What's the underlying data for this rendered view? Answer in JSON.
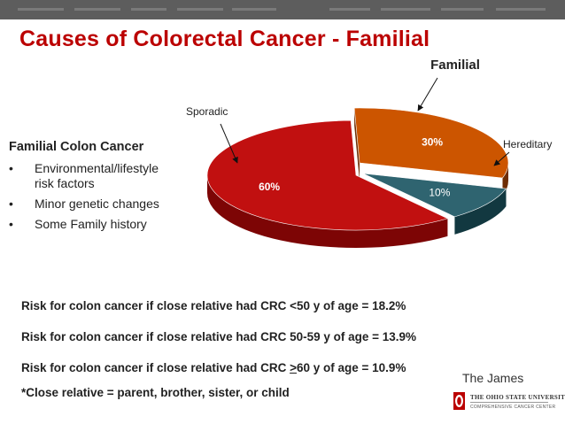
{
  "slide": {
    "title": "Causes of Colorectal Cancer - Familial"
  },
  "sidebar": {
    "heading": "Familial Colon Cancer",
    "bullet_char": "•",
    "items": [
      {
        "line1": "Environmental/lifestyle",
        "line2": "risk factors"
      },
      {
        "line1": "Minor genetic changes",
        "line2": ""
      },
      {
        "line1": "Some Family history",
        "line2": ""
      }
    ]
  },
  "chart_data": {
    "type": "pie",
    "style": "3d-exploded",
    "title": "",
    "slices": [
      {
        "name": "Familial",
        "value": 30,
        "label": "30%",
        "color": "#cc5500",
        "side_color": "#6e2d05"
      },
      {
        "name": "Hereditary",
        "value": 10,
        "label": "10%",
        "color": "#2f6470",
        "side_color": "#123840"
      },
      {
        "name": "Sporadic",
        "value": 60,
        "label": "60%",
        "color": "#c11010",
        "side_color": "#7d0505"
      }
    ],
    "callouts": [
      "Familial",
      "Hereditary",
      "Sporadic"
    ]
  },
  "risks": {
    "r1": "Risk for colon cancer if close relative had CRC <50 y of age = 18.2%",
    "r2": "Risk for colon cancer if close relative had CRC 50-59 y of age = 13.9%",
    "r3_pre": "Risk for colon cancer if close relative had CRC ",
    "r3_ul": ">",
    "r3_post": "60 y of age = 10.9%",
    "note": "*Close relative = parent, brother, sister, or child"
  },
  "logo": {
    "name": "The James",
    "university": "THE OHIO STATE UNIVERSITY",
    "sub": "COMPREHENSIVE CANCER CENTER"
  },
  "colors": {
    "title": "#bb0000",
    "band": "#5d5d5d"
  }
}
